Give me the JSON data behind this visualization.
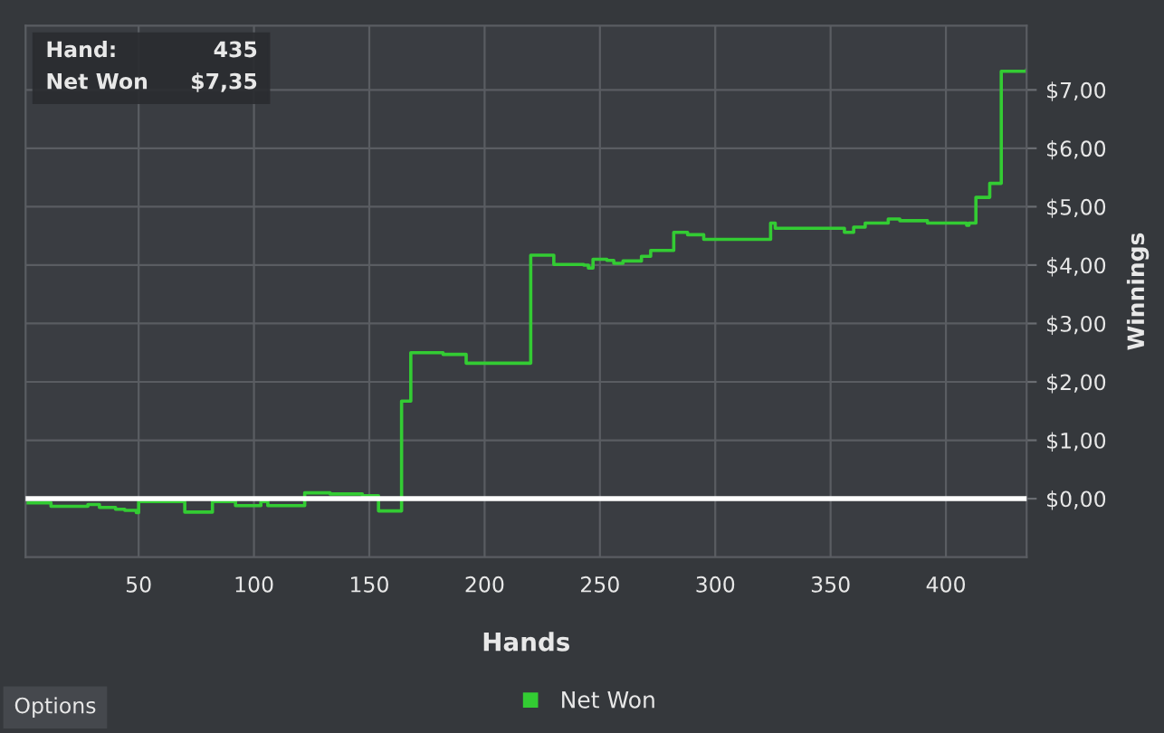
{
  "chart_data": {
    "type": "step",
    "xlabel": "Hands",
    "ylabel": "Winnings",
    "x": [
      1,
      12,
      28,
      33,
      40,
      44,
      49,
      50,
      70,
      82,
      92,
      103,
      106,
      122,
      133,
      147,
      154,
      164,
      168,
      182,
      192,
      220,
      230,
      243,
      245,
      247,
      253,
      256,
      260,
      268,
      272,
      282,
      288,
      295,
      324,
      326,
      338,
      356,
      360,
      365,
      375,
      380,
      392,
      409,
      410,
      413,
      419,
      424,
      435
    ],
    "series": [
      {
        "name": "Net Won",
        "color": "#33cc33",
        "values": [
          -0.07,
          -0.13,
          -0.1,
          -0.15,
          -0.18,
          -0.2,
          -0.24,
          -0.05,
          -0.23,
          -0.05,
          -0.12,
          -0.05,
          -0.12,
          0.1,
          0.08,
          0.05,
          -0.21,
          1.67,
          2.5,
          2.47,
          2.32,
          4.17,
          4.01,
          4.0,
          3.95,
          4.1,
          4.08,
          4.03,
          4.07,
          4.15,
          4.25,
          4.56,
          4.52,
          4.44,
          4.72,
          4.63,
          4.63,
          4.56,
          4.65,
          4.72,
          4.79,
          4.76,
          4.72,
          4.68,
          4.72,
          5.16,
          5.4,
          7.32,
          7.35
        ]
      }
    ],
    "xlim": [
      1,
      435
    ],
    "xticks": [
      50,
      100,
      150,
      200,
      250,
      300,
      350,
      400
    ],
    "ylim": [
      -1,
      8.1
    ],
    "yticks": [
      {
        "value": 0,
        "label": "$0,00"
      },
      {
        "value": 1,
        "label": "$1,00"
      },
      {
        "value": 2,
        "label": "$2,00"
      },
      {
        "value": 3,
        "label": "$3,00"
      },
      {
        "value": 4,
        "label": "$4,00"
      },
      {
        "value": 5,
        "label": "$5,00"
      },
      {
        "value": 6,
        "label": "$6,00"
      },
      {
        "value": 7,
        "label": "$7,00"
      }
    ],
    "ref_lines": [
      {
        "axis": "y",
        "value": 0,
        "color": "#ffffff"
      }
    ],
    "grid": true,
    "legend": "bottom",
    "annotations": [
      "Hand:",
      "435",
      "Net Won",
      "$7,35",
      "Options"
    ]
  }
}
